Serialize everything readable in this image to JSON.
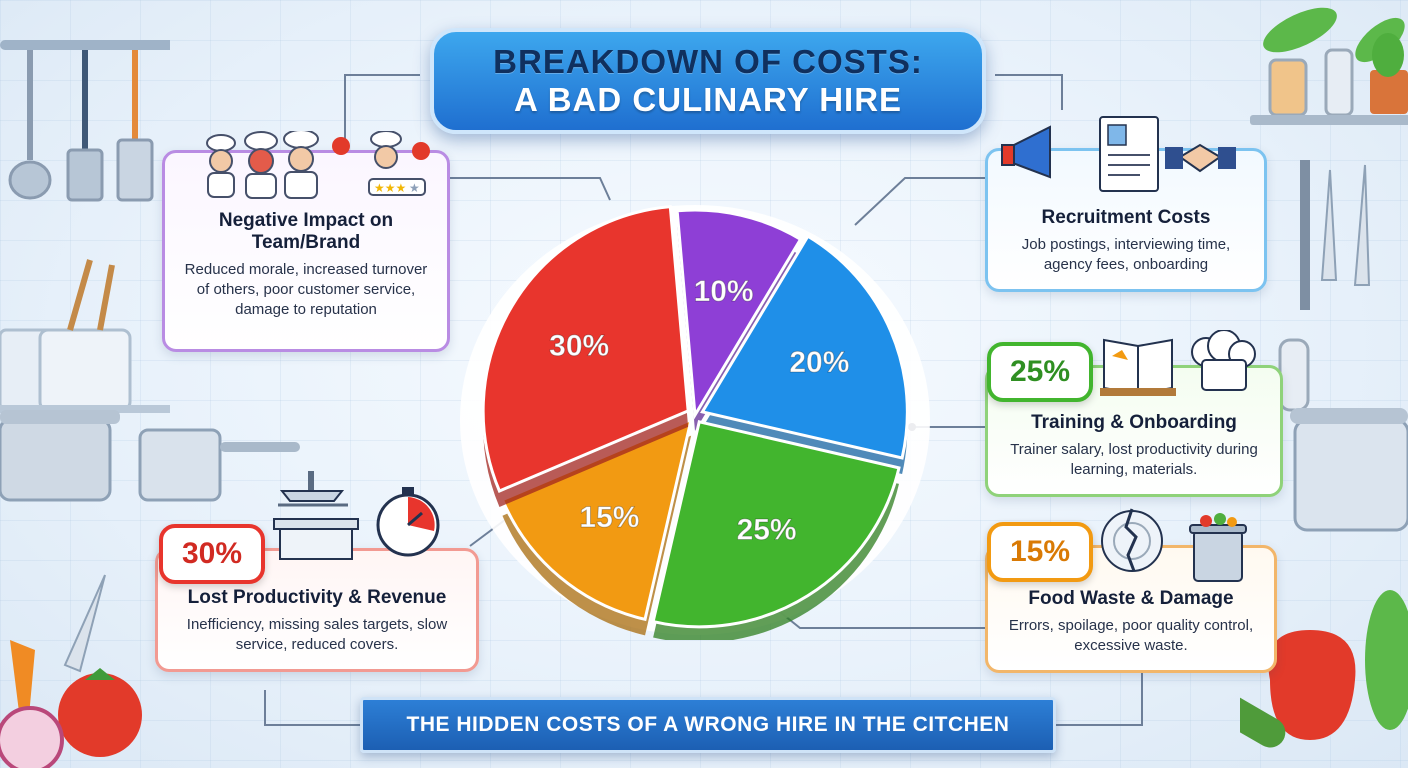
{
  "title": {
    "line1": "BREAKDOWN OF COSTS:",
    "line2": "A BAD CULINARY HIRE"
  },
  "footer": "THE HIDDEN COSTS OF A WRONG HIRE IN THE CITCHEN",
  "colors": {
    "purple": "#8e3fd6",
    "blue": "#1f8fe8",
    "green": "#42b52e",
    "orange": "#f29a12",
    "red": "#e8352d"
  },
  "chart_data": {
    "type": "pie",
    "categories": [
      "Negative Impact on Team/Brand",
      "Recruitment Costs",
      "Training & Onboarding",
      "Food Waste & Damage",
      "Lost Productivity & Revenue"
    ],
    "values": [
      10,
      20,
      25,
      15,
      30
    ],
    "labels": [
      "10%",
      "20%",
      "25%",
      "15%",
      "30%"
    ]
  },
  "cards": {
    "team": {
      "title": "Negative Impact on Team/Brand",
      "desc": "Reduced morale, increased turnover of others, poor customer service, damage to reputation",
      "icon": "angry-chef-team-icon"
    },
    "recruit": {
      "title": "Recruitment Costs",
      "desc": "Job postings, interviewing time, agency fees, onboarding",
      "icon": "megaphone-resume-handshake-icon"
    },
    "training": {
      "pct": "25%",
      "title": "Training & Onboarding",
      "desc": "Trainer salary, lost productivity during learning, materials.",
      "icon": "book-chef-hat-icon"
    },
    "waste": {
      "pct": "15%",
      "title": "Food Waste & Damage",
      "desc": "Errors, spoilage, poor quality control, excessive waste.",
      "icon": "broken-plate-trash-icon"
    },
    "productivity": {
      "pct": "30%",
      "title": "Lost Productivity & Revenue",
      "desc": "Inefficiency, missing sales targets, slow service, reduced covers.",
      "icon": "kitchen-stopwatch-icon"
    }
  }
}
